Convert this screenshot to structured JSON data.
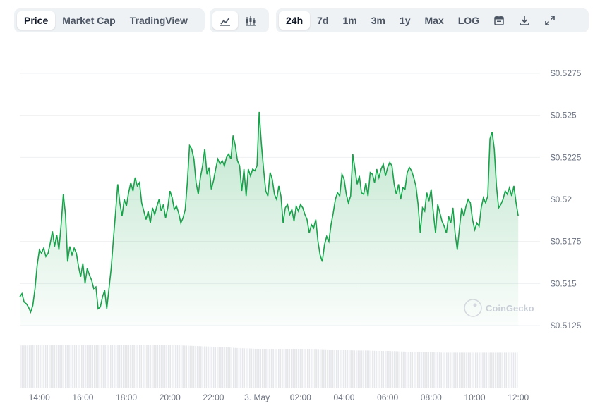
{
  "toolbar": {
    "metric_tabs": [
      {
        "label": "Price",
        "active": true
      },
      {
        "label": "Market Cap",
        "active": false
      },
      {
        "label": "TradingView",
        "active": false
      }
    ],
    "chart_style_icons": [
      "line-chart-icon",
      "candlestick-chart-icon"
    ],
    "ranges": [
      {
        "label": "24h",
        "active": true
      },
      {
        "label": "7d",
        "active": false
      },
      {
        "label": "1m",
        "active": false
      },
      {
        "label": "3m",
        "active": false
      },
      {
        "label": "1y",
        "active": false
      },
      {
        "label": "Max",
        "active": false
      },
      {
        "label": "LOG",
        "active": false
      }
    ],
    "action_icons": [
      "calendar-icon",
      "download-icon",
      "expand-icon"
    ]
  },
  "watermark": "CoinGecko",
  "colors": {
    "line": "#16a34a",
    "fill": "#16a34a",
    "volume": "#e5e7eb",
    "grid": "#eef0f3",
    "active": "#ffffff"
  },
  "chart_data": {
    "type": "area",
    "ylim": [
      0.5125,
      0.5275
    ],
    "y_ticks": [
      0.5125,
      0.515,
      0.5175,
      0.52,
      0.5225,
      0.525,
      0.5275
    ],
    "y_tick_labels": [
      "$0.5125",
      "$0.515",
      "$0.5175",
      "$0.52",
      "$0.5225",
      "$0.525",
      "$0.5275"
    ],
    "x_tick_labels": [
      "14:00",
      "16:00",
      "18:00",
      "20:00",
      "22:00",
      "3. May",
      "02:00",
      "04:00",
      "06:00",
      "08:00",
      "10:00",
      "12:00"
    ],
    "x_tick_hours": [
      14,
      16,
      18,
      20,
      22,
      24,
      26,
      28,
      30,
      32,
      34,
      36
    ],
    "x_range_hours": [
      13.1,
      37.0
    ],
    "grid": true,
    "series": [
      {
        "points": [
          [
            13.1,
            0.5142
          ],
          [
            13.2,
            0.5144
          ],
          [
            13.3,
            0.5139
          ],
          [
            13.4,
            0.5138
          ],
          [
            13.5,
            0.5136
          ],
          [
            13.6,
            0.5133
          ],
          [
            13.7,
            0.5137
          ],
          [
            13.8,
            0.5147
          ],
          [
            13.9,
            0.5161
          ],
          [
            14.0,
            0.517
          ],
          [
            14.1,
            0.5168
          ],
          [
            14.2,
            0.5171
          ],
          [
            14.3,
            0.5166
          ],
          [
            14.4,
            0.5168
          ],
          [
            14.5,
            0.5174
          ],
          [
            14.6,
            0.5181
          ],
          [
            14.7,
            0.5172
          ],
          [
            14.8,
            0.5179
          ],
          [
            14.9,
            0.517
          ],
          [
            15.0,
            0.5185
          ],
          [
            15.1,
            0.5203
          ],
          [
            15.2,
            0.5191
          ],
          [
            15.3,
            0.5163
          ],
          [
            15.4,
            0.5172
          ],
          [
            15.5,
            0.5167
          ],
          [
            15.6,
            0.5171
          ],
          [
            15.7,
            0.5168
          ],
          [
            15.8,
            0.516
          ],
          [
            15.9,
            0.5154
          ],
          [
            16.0,
            0.5162
          ],
          [
            16.1,
            0.515
          ],
          [
            16.2,
            0.5159
          ],
          [
            16.3,
            0.5155
          ],
          [
            16.4,
            0.5152
          ],
          [
            16.5,
            0.5147
          ],
          [
            16.6,
            0.5148
          ],
          [
            16.7,
            0.5135
          ],
          [
            16.8,
            0.5136
          ],
          [
            16.9,
            0.5142
          ],
          [
            17.0,
            0.5146
          ],
          [
            17.1,
            0.5135
          ],
          [
            17.2,
            0.5147
          ],
          [
            17.3,
            0.5159
          ],
          [
            17.4,
            0.5176
          ],
          [
            17.5,
            0.5192
          ],
          [
            17.6,
            0.5209
          ],
          [
            17.7,
            0.5198
          ],
          [
            17.8,
            0.519
          ],
          [
            17.9,
            0.52
          ],
          [
            18.0,
            0.5196
          ],
          [
            18.1,
            0.5204
          ],
          [
            18.2,
            0.521
          ],
          [
            18.3,
            0.5205
          ],
          [
            18.4,
            0.5213
          ],
          [
            18.5,
            0.5208
          ],
          [
            18.6,
            0.521
          ],
          [
            18.7,
            0.5198
          ],
          [
            18.8,
            0.5193
          ],
          [
            18.9,
            0.5188
          ],
          [
            19.0,
            0.5193
          ],
          [
            19.1,
            0.5186
          ],
          [
            19.2,
            0.5195
          ],
          [
            19.3,
            0.5191
          ],
          [
            19.4,
            0.5196
          ],
          [
            19.5,
            0.52
          ],
          [
            19.6,
            0.5193
          ],
          [
            19.7,
            0.5197
          ],
          [
            19.8,
            0.5189
          ],
          [
            19.9,
            0.5195
          ],
          [
            20.0,
            0.5205
          ],
          [
            20.1,
            0.5201
          ],
          [
            20.2,
            0.5194
          ],
          [
            20.3,
            0.5196
          ],
          [
            20.4,
            0.5192
          ],
          [
            20.5,
            0.5186
          ],
          [
            20.6,
            0.5189
          ],
          [
            20.7,
            0.5194
          ],
          [
            20.8,
            0.521
          ],
          [
            20.9,
            0.5232
          ],
          [
            21.0,
            0.523
          ],
          [
            21.1,
            0.5224
          ],
          [
            21.2,
            0.521
          ],
          [
            21.3,
            0.5203
          ],
          [
            21.4,
            0.5213
          ],
          [
            21.5,
            0.522
          ],
          [
            21.6,
            0.523
          ],
          [
            21.7,
            0.5215
          ],
          [
            21.8,
            0.5219
          ],
          [
            21.9,
            0.5206
          ],
          [
            22.0,
            0.5211
          ],
          [
            22.1,
            0.5218
          ],
          [
            22.2,
            0.5224
          ],
          [
            22.3,
            0.5221
          ],
          [
            22.4,
            0.5223
          ],
          [
            22.5,
            0.522
          ],
          [
            22.6,
            0.5225
          ],
          [
            22.7,
            0.5227
          ],
          [
            22.8,
            0.5224
          ],
          [
            22.9,
            0.5238
          ],
          [
            23.0,
            0.5232
          ],
          [
            23.1,
            0.5223
          ],
          [
            23.2,
            0.522
          ],
          [
            23.3,
            0.5205
          ],
          [
            23.4,
            0.5218
          ],
          [
            23.5,
            0.5202
          ],
          [
            23.6,
            0.5218
          ],
          [
            23.7,
            0.5214
          ],
          [
            23.8,
            0.5218
          ],
          [
            23.9,
            0.5217
          ],
          [
            24.0,
            0.522
          ],
          [
            24.1,
            0.5252
          ],
          [
            24.2,
            0.5233
          ],
          [
            24.3,
            0.5218
          ],
          [
            24.4,
            0.5205
          ],
          [
            24.5,
            0.5202
          ],
          [
            24.6,
            0.5216
          ],
          [
            24.7,
            0.5212
          ],
          [
            24.8,
            0.5203
          ],
          [
            24.9,
            0.52
          ],
          [
            25.0,
            0.5208
          ],
          [
            25.1,
            0.5202
          ],
          [
            25.2,
            0.5186
          ],
          [
            25.3,
            0.5195
          ],
          [
            25.4,
            0.5197
          ],
          [
            25.5,
            0.5191
          ],
          [
            25.6,
            0.5194
          ],
          [
            25.7,
            0.5187
          ],
          [
            25.8,
            0.5196
          ],
          [
            25.9,
            0.5193
          ],
          [
            26.0,
            0.5197
          ],
          [
            26.1,
            0.5195
          ],
          [
            26.2,
            0.5191
          ],
          [
            26.3,
            0.5188
          ],
          [
            26.4,
            0.518
          ],
          [
            26.5,
            0.5185
          ],
          [
            26.6,
            0.5183
          ],
          [
            26.7,
            0.5188
          ],
          [
            26.8,
            0.5175
          ],
          [
            26.9,
            0.5167
          ],
          [
            27.0,
            0.5163
          ],
          [
            27.1,
            0.5173
          ],
          [
            27.2,
            0.5178
          ],
          [
            27.3,
            0.5175
          ],
          [
            27.4,
            0.5185
          ],
          [
            27.5,
            0.5192
          ],
          [
            27.6,
            0.52
          ],
          [
            27.7,
            0.5204
          ],
          [
            27.8,
            0.5202
          ],
          [
            27.9,
            0.5215
          ],
          [
            28.0,
            0.5212
          ],
          [
            28.1,
            0.5203
          ],
          [
            28.2,
            0.5198
          ],
          [
            28.3,
            0.5202
          ],
          [
            28.4,
            0.5227
          ],
          [
            28.5,
            0.5218
          ],
          [
            28.6,
            0.5209
          ],
          [
            28.7,
            0.5214
          ],
          [
            28.8,
            0.5204
          ],
          [
            28.9,
            0.5203
          ],
          [
            29.0,
            0.521
          ],
          [
            29.1,
            0.5202
          ],
          [
            29.2,
            0.5216
          ],
          [
            29.3,
            0.5215
          ],
          [
            29.4,
            0.521
          ],
          [
            29.5,
            0.5218
          ],
          [
            29.6,
            0.5213
          ],
          [
            29.7,
            0.5218
          ],
          [
            29.8,
            0.5221
          ],
          [
            29.9,
            0.5214
          ],
          [
            30.0,
            0.5219
          ],
          [
            30.1,
            0.5222
          ],
          [
            30.2,
            0.522
          ],
          [
            30.3,
            0.5209
          ],
          [
            30.4,
            0.5203
          ],
          [
            30.5,
            0.5209
          ],
          [
            30.6,
            0.52
          ],
          [
            30.7,
            0.5207
          ],
          [
            30.8,
            0.5206
          ],
          [
            30.9,
            0.5216
          ],
          [
            31.0,
            0.5219
          ],
          [
            31.1,
            0.5217
          ],
          [
            31.2,
            0.5213
          ],
          [
            31.3,
            0.5208
          ],
          [
            31.4,
            0.5197
          ],
          [
            31.5,
            0.518
          ],
          [
            31.6,
            0.5195
          ],
          [
            31.7,
            0.5193
          ],
          [
            31.8,
            0.5204
          ],
          [
            31.9,
            0.5199
          ],
          [
            32.0,
            0.5206
          ],
          [
            32.1,
            0.5192
          ],
          [
            32.2,
            0.518
          ],
          [
            32.3,
            0.5197
          ],
          [
            32.4,
            0.5192
          ],
          [
            32.5,
            0.5187
          ],
          [
            32.6,
            0.5184
          ],
          [
            32.7,
            0.518
          ],
          [
            32.8,
            0.519
          ],
          [
            32.9,
            0.5186
          ],
          [
            33.0,
            0.5195
          ],
          [
            33.1,
            0.518
          ],
          [
            33.2,
            0.517
          ],
          [
            33.3,
            0.5183
          ],
          [
            33.4,
            0.5195
          ],
          [
            33.5,
            0.519
          ],
          [
            33.6,
            0.5196
          ],
          [
            33.7,
            0.52
          ],
          [
            33.8,
            0.5198
          ],
          [
            33.9,
            0.5188
          ],
          [
            34.0,
            0.5182
          ],
          [
            34.1,
            0.5186
          ],
          [
            34.2,
            0.5184
          ],
          [
            34.3,
            0.5195
          ],
          [
            34.4,
            0.5201
          ],
          [
            34.5,
            0.5198
          ],
          [
            34.6,
            0.5202
          ],
          [
            34.7,
            0.5236
          ],
          [
            34.8,
            0.524
          ],
          [
            34.9,
            0.523
          ],
          [
            35.0,
            0.5208
          ],
          [
            35.1,
            0.5195
          ],
          [
            35.2,
            0.5197
          ],
          [
            35.3,
            0.52
          ],
          [
            35.4,
            0.5205
          ],
          [
            35.5,
            0.5203
          ],
          [
            35.6,
            0.5207
          ],
          [
            35.7,
            0.5202
          ],
          [
            35.8,
            0.5208
          ],
          [
            35.9,
            0.5198
          ],
          [
            36.0,
            0.519
          ]
        ]
      }
    ],
    "volume": [
      [
        13.1,
        1.0
      ],
      [
        13.5,
        1.0
      ],
      [
        14.0,
        1.01
      ],
      [
        14.5,
        1.01
      ],
      [
        15.0,
        1.01
      ],
      [
        15.5,
        1.01
      ],
      [
        16.0,
        1.01
      ],
      [
        16.5,
        1.01
      ],
      [
        17.0,
        1.01
      ],
      [
        17.5,
        1.02
      ],
      [
        18.0,
        1.02
      ],
      [
        18.5,
        1.02
      ],
      [
        19.0,
        1.02
      ],
      [
        19.5,
        1.02
      ],
      [
        20.0,
        1.01
      ],
      [
        20.5,
        1.0
      ],
      [
        21.0,
        0.99
      ],
      [
        21.5,
        0.98
      ],
      [
        22.0,
        0.97
      ],
      [
        22.5,
        0.96
      ],
      [
        23.0,
        0.94
      ],
      [
        23.5,
        0.93
      ],
      [
        24.0,
        0.92
      ],
      [
        24.5,
        0.92
      ],
      [
        25.0,
        0.92
      ],
      [
        25.5,
        0.92
      ],
      [
        26.0,
        0.92
      ],
      [
        26.5,
        0.92
      ],
      [
        27.0,
        0.91
      ],
      [
        27.5,
        0.9
      ],
      [
        28.0,
        0.89
      ],
      [
        28.5,
        0.88
      ],
      [
        29.0,
        0.88
      ],
      [
        29.5,
        0.87
      ],
      [
        30.0,
        0.87
      ],
      [
        30.5,
        0.86
      ],
      [
        31.0,
        0.85
      ],
      [
        31.5,
        0.84
      ],
      [
        32.0,
        0.84
      ],
      [
        32.5,
        0.83
      ],
      [
        33.0,
        0.83
      ],
      [
        33.5,
        0.83
      ],
      [
        34.0,
        0.83
      ],
      [
        34.5,
        0.83
      ],
      [
        35.0,
        0.83
      ],
      [
        35.5,
        0.83
      ],
      [
        36.0,
        0.83
      ]
    ]
  }
}
